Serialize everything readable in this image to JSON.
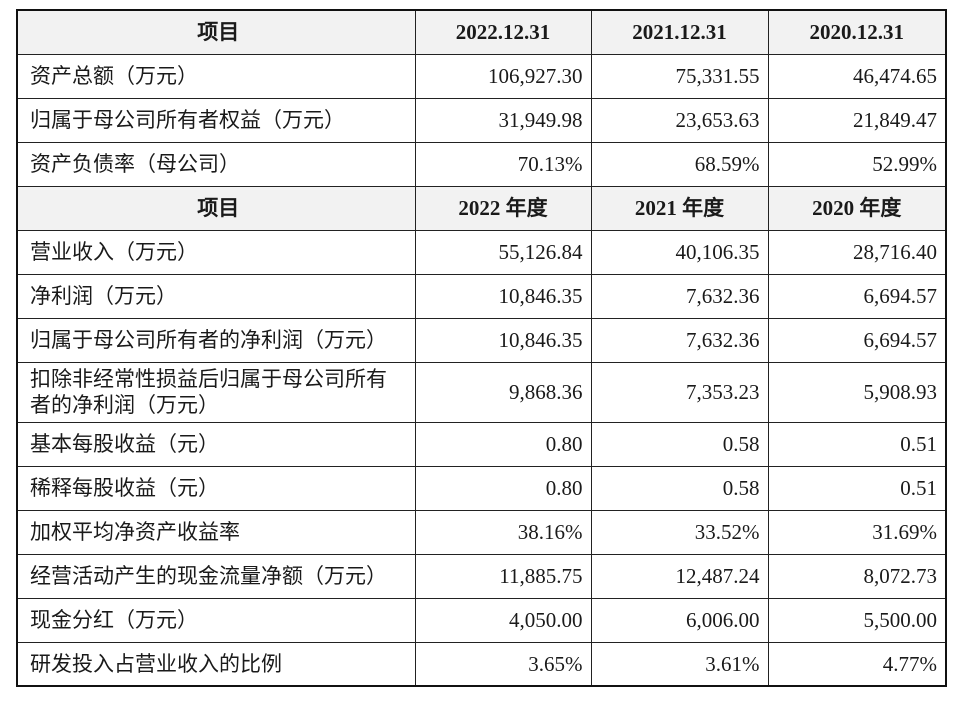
{
  "header1": {
    "label": "项目",
    "c1": "2022.12.31",
    "c2": "2021.12.31",
    "c3": "2020.12.31"
  },
  "section1": [
    {
      "label": "资产总额（万元）",
      "v": [
        "106,927.30",
        "75,331.55",
        "46,474.65"
      ]
    },
    {
      "label": "归属于母公司所有者权益（万元）",
      "v": [
        "31,949.98",
        "23,653.63",
        "21,849.47"
      ]
    },
    {
      "label": "资产负债率（母公司）",
      "v": [
        "70.13%",
        "68.59%",
        "52.99%"
      ]
    }
  ],
  "header2": {
    "label": "项目",
    "c1": "2022 年度",
    "c2": "2021 年度",
    "c3": "2020 年度"
  },
  "section2": [
    {
      "label": "营业收入（万元）",
      "v": [
        "55,126.84",
        "40,106.35",
        "28,716.40"
      ]
    },
    {
      "label": "净利润（万元）",
      "v": [
        "10,846.35",
        "7,632.36",
        "6,694.57"
      ]
    },
    {
      "label": "归属于母公司所有者的净利润（万元）",
      "v": [
        "10,846.35",
        "7,632.36",
        "6,694.57"
      ]
    },
    {
      "label": "扣除非经常性损益后归属于母公司所有者的净利润（万元）",
      "v": [
        "9,868.36",
        "7,353.23",
        "5,908.93"
      ]
    },
    {
      "label": "基本每股收益（元）",
      "v": [
        "0.80",
        "0.58",
        "0.51"
      ]
    },
    {
      "label": "稀释每股收益（元）",
      "v": [
        "0.80",
        "0.58",
        "0.51"
      ]
    },
    {
      "label": "加权平均净资产收益率",
      "v": [
        "38.16%",
        "33.52%",
        "31.69%"
      ]
    },
    {
      "label": "经营活动产生的现金流量净额（万元）",
      "v": [
        "11,885.75",
        "12,487.24",
        "8,072.73"
      ]
    },
    {
      "label": "现金分红（万元）",
      "v": [
        "4,050.00",
        "6,006.00",
        "5,500.00"
      ]
    },
    {
      "label": "研发投入占营业收入的比例",
      "v": [
        "3.65%",
        "3.61%",
        "4.77%"
      ]
    }
  ]
}
